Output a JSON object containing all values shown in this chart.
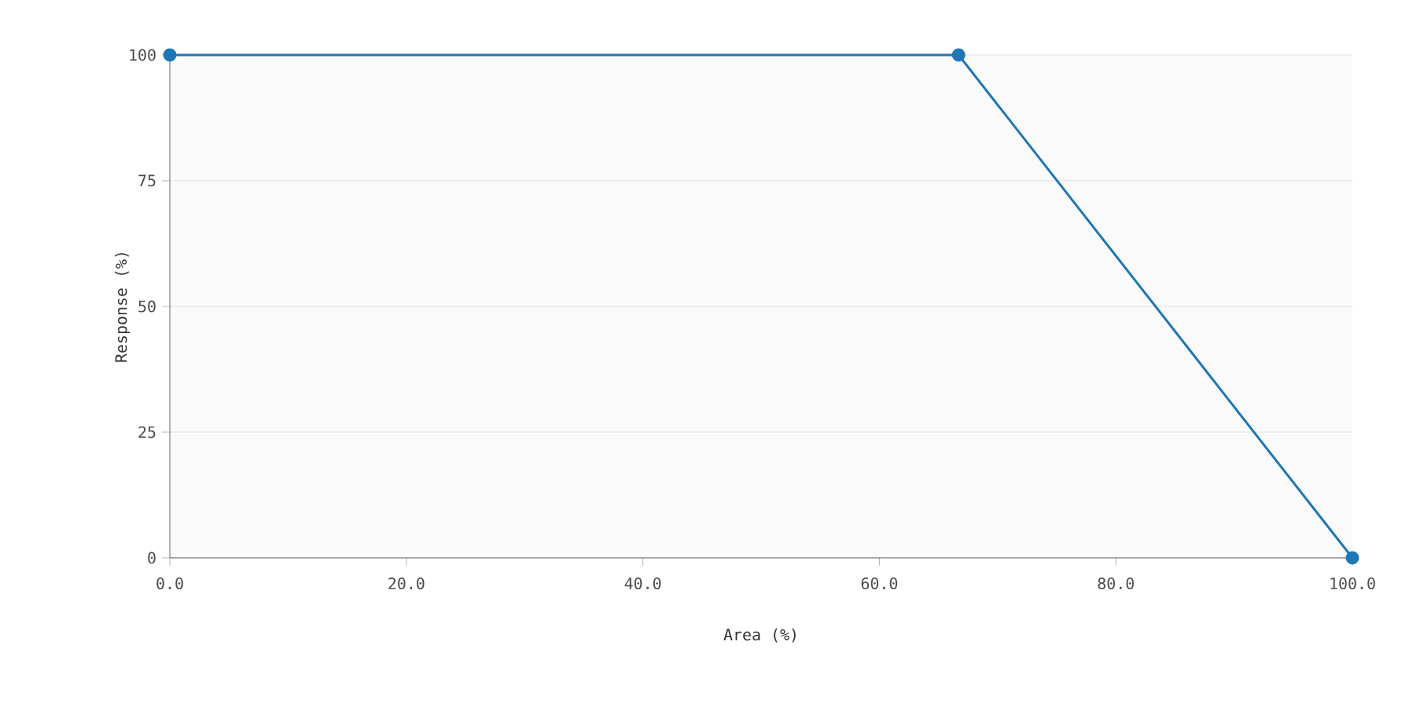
{
  "chart_data": {
    "type": "line",
    "xlabel": "Area (%)",
    "ylabel": "Response (%)",
    "x": [
      0,
      66.7,
      100
    ],
    "series": [
      {
        "color": "#1f77b4",
        "values": [
          100,
          100,
          0
        ]
      }
    ],
    "xlim": [
      0,
      100
    ],
    "ylim": [
      0,
      100
    ],
    "xticks": [
      {
        "value": 0,
        "label": "0.0"
      },
      {
        "value": 20,
        "label": "20.0"
      },
      {
        "value": 40,
        "label": "40.0"
      },
      {
        "value": 60,
        "label": "60.0"
      },
      {
        "value": 80,
        "label": "80.0"
      },
      {
        "value": 100,
        "label": "100.0"
      }
    ],
    "yticks": [
      0,
      25,
      50,
      75,
      100
    ],
    "grid": "y",
    "marker": "circle",
    "line_style": "solid"
  }
}
